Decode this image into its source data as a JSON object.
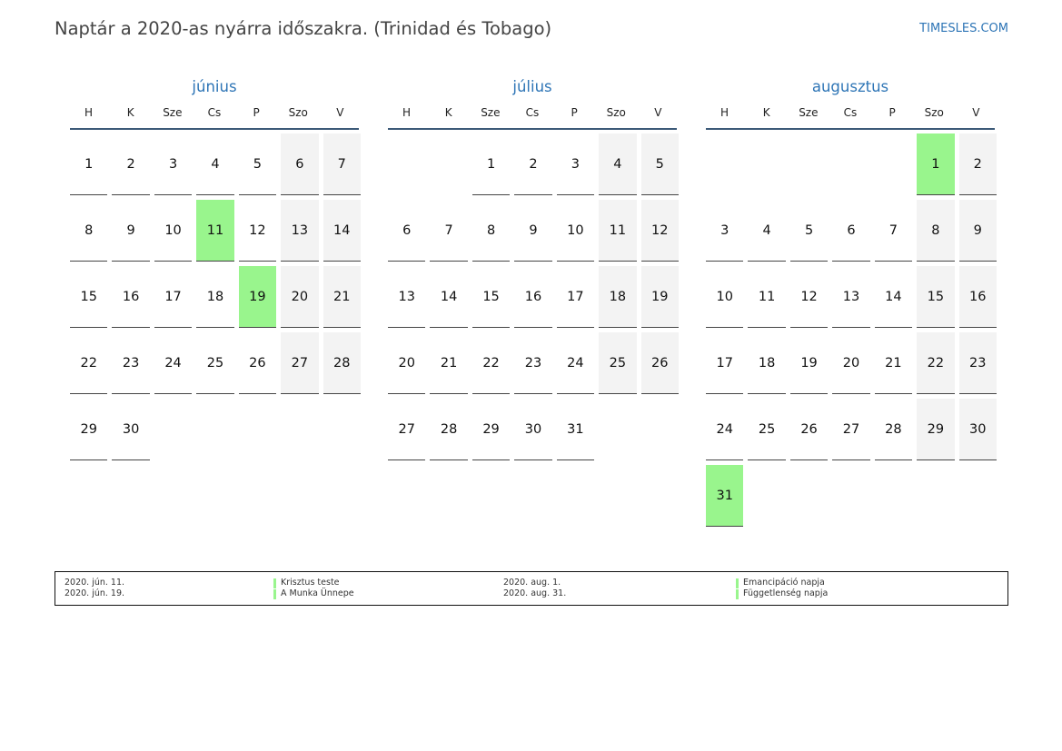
{
  "title": "Naptár a 2020-as nyárra időszakra. (Trinidad és Tobago)",
  "brand": "TIMESLES.COM",
  "colors": {
    "accent": "#2e75b6",
    "holiday": "#99f58d",
    "weekend": "#f3f3f3"
  },
  "weekdays": [
    "H",
    "K",
    "Sze",
    "Cs",
    "P",
    "Szo",
    "V"
  ],
  "months": [
    {
      "name": "június",
      "start_offset": 0,
      "days": 30,
      "holidays": [
        11,
        19
      ]
    },
    {
      "name": "július",
      "start_offset": 2,
      "days": 31,
      "holidays": []
    },
    {
      "name": "augusztus",
      "start_offset": 5,
      "days": 31,
      "holidays": [
        1,
        31
      ]
    }
  ],
  "legend": {
    "left": [
      {
        "date": "2020. jún. 11.",
        "name": "Krisztus teste"
      },
      {
        "date": "2020. jún. 19.",
        "name": "A Munka Ünnepe"
      }
    ],
    "right": [
      {
        "date": "2020. aug. 1.",
        "name": "Emancipáció napja"
      },
      {
        "date": "2020. aug. 31.",
        "name": "Függetlenség napja"
      }
    ]
  }
}
